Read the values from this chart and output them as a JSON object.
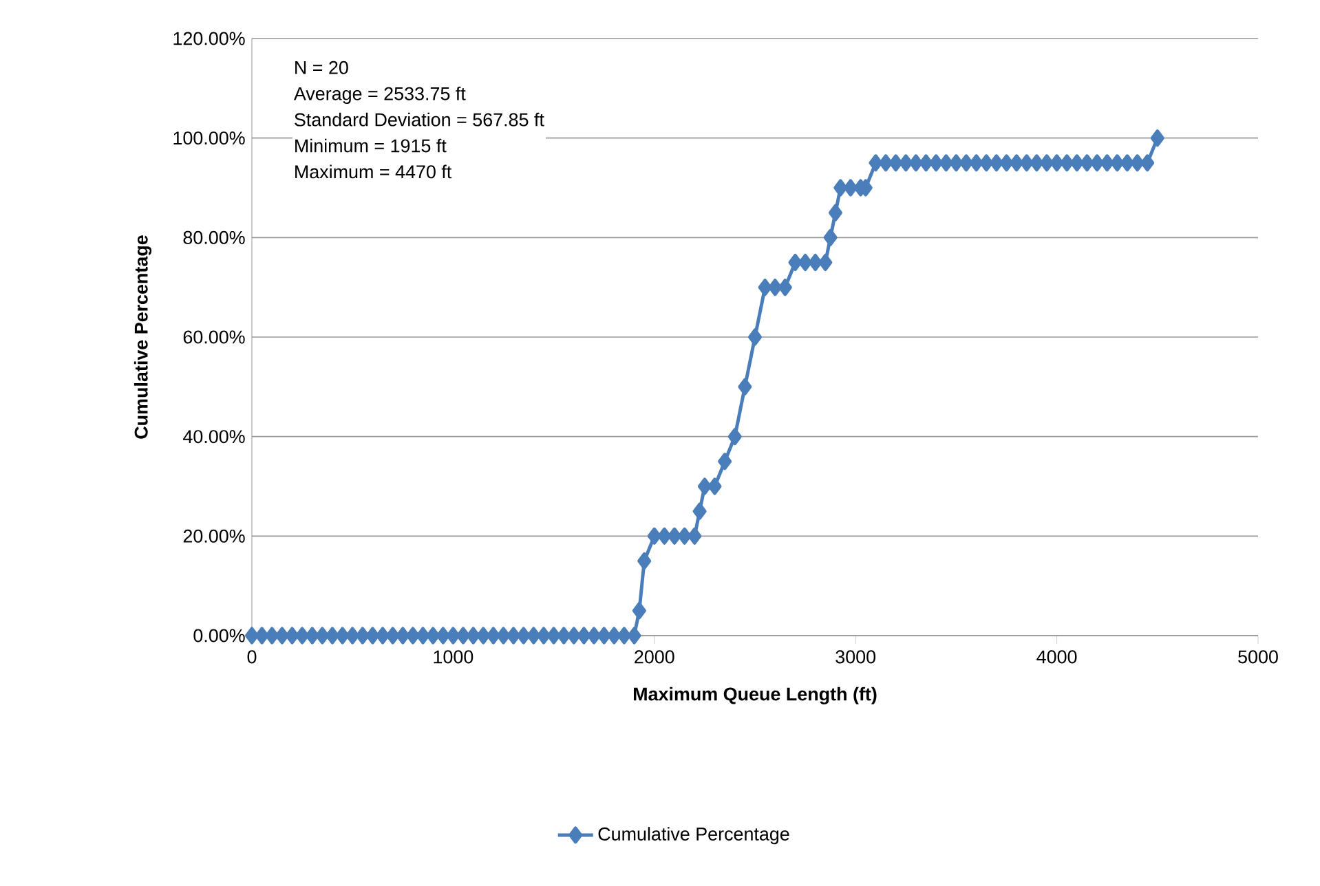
{
  "chart_data": {
    "type": "line",
    "xlabel": "Maximum Queue Length (ft)",
    "ylabel": "Cumulative Percentage",
    "annotations": [
      "N = 20",
      "Average = 2533.75 ft",
      "Standard Deviation = 567.85 ft",
      "Minimum = 1915 ft",
      "Maximum = 4470 ft"
    ],
    "series": [
      {
        "name": "Cumulative Percentage",
        "color": "#4a7ebb",
        "x": [
          0,
          50,
          100,
          150,
          200,
          250,
          300,
          350,
          400,
          450,
          500,
          550,
          600,
          650,
          700,
          750,
          800,
          850,
          900,
          950,
          1000,
          1050,
          1100,
          1150,
          1200,
          1250,
          1300,
          1350,
          1400,
          1450,
          1500,
          1550,
          1600,
          1650,
          1700,
          1750,
          1800,
          1850,
          1900,
          1925,
          1950,
          2000,
          2050,
          2100,
          2150,
          2200,
          2225,
          2250,
          2300,
          2350,
          2400,
          2450,
          2500,
          2550,
          2600,
          2650,
          2700,
          2750,
          2800,
          2850,
          2875,
          2900,
          2925,
          2975,
          3025,
          3050,
          3100,
          3150,
          3200,
          3250,
          3300,
          3350,
          3400,
          3450,
          3500,
          3550,
          3600,
          3650,
          3700,
          3750,
          3800,
          3850,
          3900,
          3950,
          4000,
          4050,
          4100,
          4150,
          4200,
          4250,
          4300,
          4350,
          4400,
          4450,
          4500
        ],
        "values": [
          0,
          0,
          0,
          0,
          0,
          0,
          0,
          0,
          0,
          0,
          0,
          0,
          0,
          0,
          0,
          0,
          0,
          0,
          0,
          0,
          0,
          0,
          0,
          0,
          0,
          0,
          0,
          0,
          0,
          0,
          0,
          0,
          0,
          0,
          0,
          0,
          0,
          0,
          0,
          5,
          15,
          20,
          20,
          20,
          20,
          20,
          25,
          30,
          30,
          35,
          40,
          50,
          60,
          70,
          70,
          70,
          75,
          75,
          75,
          75,
          80,
          85,
          90,
          90,
          90,
          90,
          95,
          95,
          95,
          95,
          95,
          95,
          95,
          95,
          95,
          95,
          95,
          95,
          95,
          95,
          95,
          95,
          95,
          95,
          95,
          95,
          95,
          95,
          95,
          95,
          95,
          95,
          95,
          95,
          100
        ]
      }
    ],
    "xlim": [
      0,
      5000
    ],
    "ylim": [
      0,
      120
    ],
    "xticks": [
      0,
      1000,
      2000,
      3000,
      4000,
      5000
    ],
    "yticks": [
      {
        "value": 0,
        "label": "0.00%"
      },
      {
        "value": 20,
        "label": "20.00%"
      },
      {
        "value": 40,
        "label": "40.00%"
      },
      {
        "value": 60,
        "label": "60.00%"
      },
      {
        "value": 80,
        "label": "80.00%"
      },
      {
        "value": 100,
        "label": "100.00%"
      },
      {
        "value": 120,
        "label": "120.00%"
      }
    ],
    "grid": "y",
    "legend": "bottom",
    "marker": "diamond",
    "line_style": "solid"
  }
}
